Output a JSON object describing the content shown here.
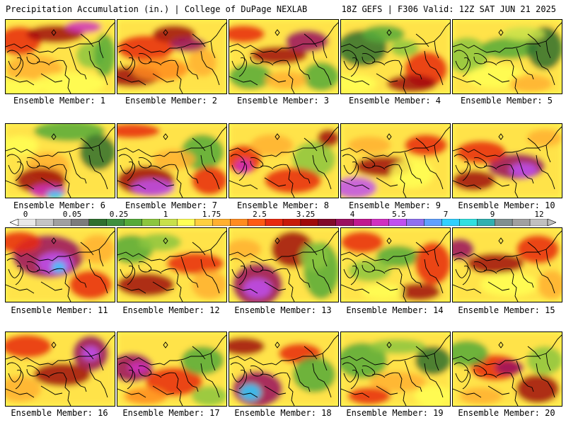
{
  "header": {
    "left": "Precipitation Accumulation (in.) | College of DuPage NEXLAB",
    "right": "18Z GEFS | F306 Valid: 12Z SAT JUN 21 2025"
  },
  "colorbar": {
    "labels": [
      "0",
      "0.05",
      "0.25",
      "1",
      "1.75",
      "2.5",
      "3.25",
      "4",
      "5.5",
      "7",
      "9",
      "12"
    ],
    "colors": [
      "#e8e8e8",
      "#c4c4c4",
      "#a0a0a0",
      "#7c7c7c",
      "#2f6f2f",
      "#3f8f3f",
      "#55aa3a",
      "#8cc63f",
      "#c8e04a",
      "#ffff55",
      "#ffd040",
      "#ffb030",
      "#ff8c20",
      "#ff5a14",
      "#e82a10",
      "#c81a0a",
      "#a00a0a",
      "#800a2a",
      "#9a1060",
      "#c01890",
      "#d030c0",
      "#c050f0",
      "#9070f0",
      "#60a0ff",
      "#30d0ff",
      "#30e0e0",
      "#30b0b0",
      "#809090",
      "#a0a0a0",
      "#c0c0c0"
    ]
  },
  "members": [
    {
      "label": "Ensemble Member: 1"
    },
    {
      "label": "Ensemble Member: 2"
    },
    {
      "label": "Ensemble Member: 3"
    },
    {
      "label": "Ensemble Member: 4"
    },
    {
      "label": "Ensemble Member: 5"
    },
    {
      "label": "Ensemble Member: 6"
    },
    {
      "label": "Ensemble Member: 7"
    },
    {
      "label": "Ensemble Member: 8"
    },
    {
      "label": "Ensemble Member: 9"
    },
    {
      "label": "Ensemble Member: 10"
    },
    {
      "label": "Ensemble Member: 11"
    },
    {
      "label": "Ensemble Member: 12"
    },
    {
      "label": "Ensemble Member: 13"
    },
    {
      "label": "Ensemble Member: 14"
    },
    {
      "label": "Ensemble Member: 15"
    },
    {
      "label": "Ensemble Member: 16"
    },
    {
      "label": "Ensemble Member: 17"
    },
    {
      "label": "Ensemble Member: 18"
    },
    {
      "label": "Ensemble Member: 19"
    },
    {
      "label": "Ensemble Member: 20"
    }
  ]
}
